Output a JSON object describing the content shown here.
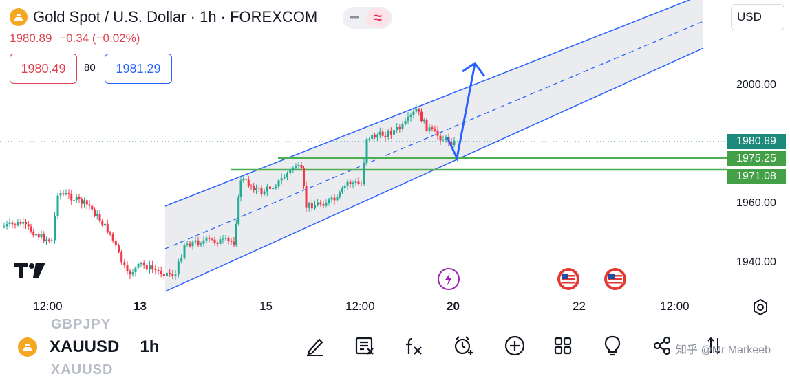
{
  "header": {
    "title": "Gold Spot / U.S. Dollar · 1h · FOREXCOM",
    "last_price": "1980.89",
    "change": "−0.34 (−0.02%)",
    "bid": "1980.49",
    "spread": "80",
    "ask": "1981.29",
    "currency": "USD",
    "pill_minus": "−",
    "pill_wave": "≈"
  },
  "colors": {
    "up": "#22ab94",
    "down": "#f23645",
    "channel_line": "#2962ff",
    "channel_fill": "#ebecef",
    "support_line": "#4caf50",
    "current_price_label": "#1b8a7a",
    "support_label": "#43a047",
    "arrow": "#2962ff"
  },
  "price_scale": {
    "ticks": [
      "2000.00",
      "1960.00",
      "1940.00"
    ],
    "labels": [
      {
        "text": "1980.89",
        "kind": "current"
      },
      {
        "text": "1975.25",
        "kind": "support"
      },
      {
        "text": "1971.08",
        "kind": "support"
      }
    ]
  },
  "time_axis": [
    {
      "text": "12:00",
      "bold": false
    },
    {
      "text": "13",
      "bold": true
    },
    {
      "text": "15",
      "bold": false
    },
    {
      "text": "12:00",
      "bold": false
    },
    {
      "text": "20",
      "bold": true
    },
    {
      "text": "22",
      "bold": false
    },
    {
      "text": "12:00",
      "bold": false
    }
  ],
  "events": [
    {
      "name": "dividend-event-icon",
      "icon": "lightning"
    },
    {
      "name": "us-economic-event-icon",
      "icon": "us-flag"
    },
    {
      "name": "us-economic-event-icon",
      "icon": "us-flag"
    }
  ],
  "bottom_bar": {
    "ghost_top": "GBPJPY",
    "ghost_bottom": "XAUUSD",
    "symbol": "XAUUSD",
    "timeframe": "1h",
    "tools": [
      "drawing-pen-icon",
      "edit-list-icon",
      "indicators-fx-icon",
      "alert-clock-icon",
      "add-circle-icon",
      "layout-grid-icon",
      "idea-lightbulb-icon",
      "share-icon",
      "compare-arrows-icon"
    ],
    "watermark": "知乎 @Mr Markeeb"
  }
}
